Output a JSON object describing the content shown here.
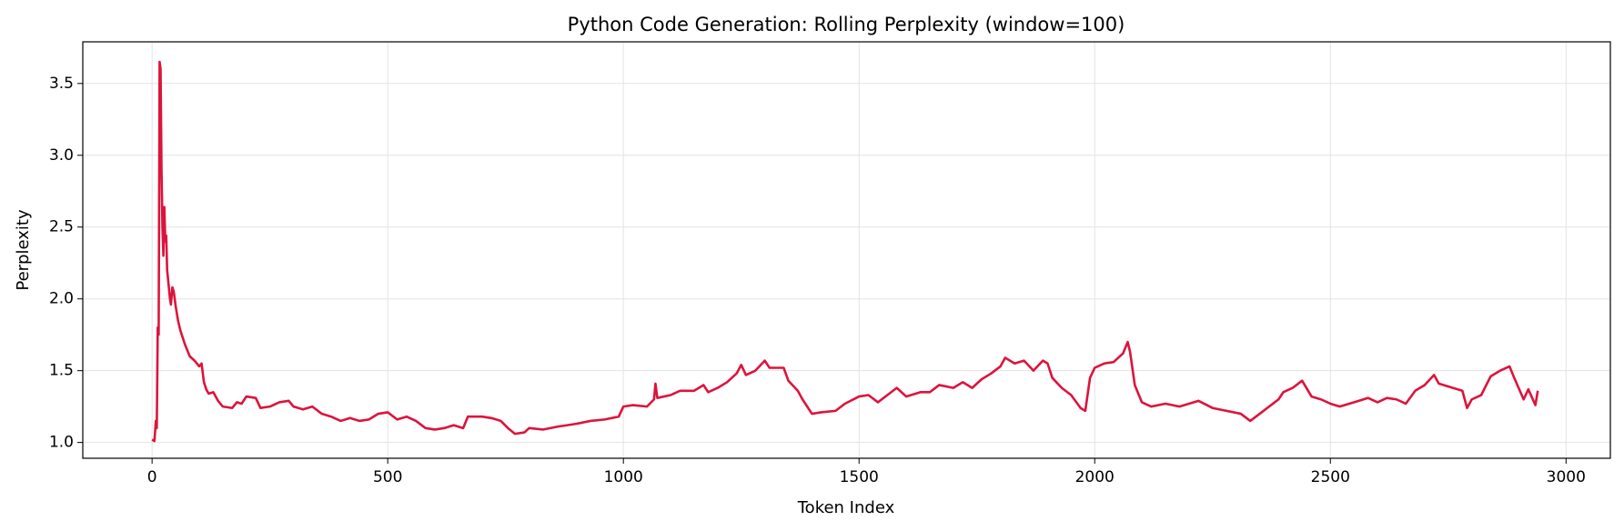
{
  "chart_data": {
    "type": "line",
    "title": "Python Code Generation: Rolling Perplexity (window=100)",
    "x_label": "Token Index",
    "y_label": "Perplexity",
    "xlim": [
      -147,
      3094
    ],
    "ylim": [
      0.89,
      3.79
    ],
    "xticks": [
      0,
      500,
      1000,
      1500,
      2000,
      2500,
      3000
    ],
    "yticks": [
      {
        "value": 1,
        "label": "1.0"
      },
      1.5,
      {
        "value": 2,
        "label": "2.0"
      },
      2.5,
      {
        "value": 3,
        "label": "3.0"
      },
      3.5
    ],
    "grid": true,
    "series": [
      {
        "color": "#dc143c",
        "x": [
          0,
          5,
          8,
          10,
          12,
          14,
          16,
          18,
          20,
          22,
          24,
          26,
          28,
          30,
          32,
          35,
          38,
          40,
          43,
          46,
          50,
          55,
          60,
          70,
          80,
          90,
          100,
          105,
          110,
          115,
          120,
          130,
          140,
          150,
          170,
          180,
          190,
          200,
          220,
          230,
          250,
          270,
          290,
          300,
          320,
          340,
          360,
          380,
          400,
          420,
          440,
          460,
          480,
          500,
          520,
          540,
          560,
          580,
          600,
          620,
          640,
          660,
          670,
          700,
          720,
          740,
          755,
          770,
          790,
          800,
          830,
          860,
          900,
          930,
          960,
          990,
          1000,
          1020,
          1050,
          1065,
          1068,
          1072,
          1100,
          1120,
          1150,
          1170,
          1180,
          1200,
          1220,
          1240,
          1250,
          1260,
          1280,
          1300,
          1310,
          1340,
          1350,
          1370,
          1380,
          1390,
          1400,
          1420,
          1450,
          1470,
          1500,
          1520,
          1540,
          1560,
          1580,
          1600,
          1630,
          1650,
          1670,
          1700,
          1720,
          1740,
          1760,
          1780,
          1800,
          1810,
          1830,
          1850,
          1870,
          1890,
          1900,
          1910,
          1930,
          1950,
          1970,
          1980,
          1990,
          2000,
          2020,
          2040,
          2060,
          2070,
          2075,
          2085,
          2100,
          2120,
          2150,
          2180,
          2200,
          2220,
          2250,
          2280,
          2310,
          2330,
          2350,
          2370,
          2390,
          2400,
          2420,
          2440,
          2460,
          2480,
          2500,
          2520,
          2540,
          2560,
          2580,
          2600,
          2620,
          2640,
          2660,
          2680,
          2700,
          2720,
          2730,
          2760,
          2780,
          2790,
          2800,
          2820,
          2840,
          2860,
          2880,
          2890,
          2910,
          2920,
          2935,
          2940
        ],
        "values": [
          1.02,
          1.01,
          1.15,
          1.1,
          1.8,
          1.75,
          3.65,
          3.6,
          2.9,
          2.5,
          2.3,
          2.64,
          2.4,
          2.44,
          2.2,
          2.1,
          2.0,
          1.96,
          2.08,
          2.05,
          1.95,
          1.85,
          1.78,
          1.68,
          1.6,
          1.57,
          1.53,
          1.55,
          1.42,
          1.37,
          1.34,
          1.35,
          1.29,
          1.25,
          1.24,
          1.28,
          1.27,
          1.32,
          1.31,
          1.24,
          1.25,
          1.28,
          1.29,
          1.25,
          1.23,
          1.25,
          1.2,
          1.18,
          1.15,
          1.17,
          1.15,
          1.16,
          1.2,
          1.21,
          1.16,
          1.18,
          1.15,
          1.1,
          1.09,
          1.1,
          1.12,
          1.1,
          1.18,
          1.18,
          1.17,
          1.15,
          1.1,
          1.06,
          1.07,
          1.1,
          1.09,
          1.11,
          1.13,
          1.15,
          1.16,
          1.18,
          1.25,
          1.26,
          1.25,
          1.3,
          1.41,
          1.31,
          1.33,
          1.36,
          1.36,
          1.4,
          1.35,
          1.38,
          1.42,
          1.48,
          1.54,
          1.47,
          1.5,
          1.57,
          1.52,
          1.52,
          1.43,
          1.36,
          1.3,
          1.25,
          1.2,
          1.21,
          1.22,
          1.27,
          1.32,
          1.33,
          1.28,
          1.33,
          1.38,
          1.32,
          1.35,
          1.35,
          1.4,
          1.38,
          1.42,
          1.38,
          1.44,
          1.48,
          1.53,
          1.59,
          1.55,
          1.57,
          1.5,
          1.57,
          1.55,
          1.45,
          1.38,
          1.33,
          1.24,
          1.22,
          1.45,
          1.52,
          1.55,
          1.56,
          1.62,
          1.7,
          1.63,
          1.4,
          1.28,
          1.25,
          1.27,
          1.25,
          1.27,
          1.29,
          1.24,
          1.22,
          1.2,
          1.15,
          1.2,
          1.25,
          1.3,
          1.35,
          1.38,
          1.43,
          1.32,
          1.3,
          1.27,
          1.25,
          1.27,
          1.29,
          1.31,
          1.28,
          1.31,
          1.3,
          1.27,
          1.36,
          1.4,
          1.47,
          1.41,
          1.38,
          1.36,
          1.24,
          1.3,
          1.33,
          1.46,
          1.5,
          1.53,
          1.45,
          1.3,
          1.37,
          1.26,
          1.36
        ]
      }
    ]
  }
}
